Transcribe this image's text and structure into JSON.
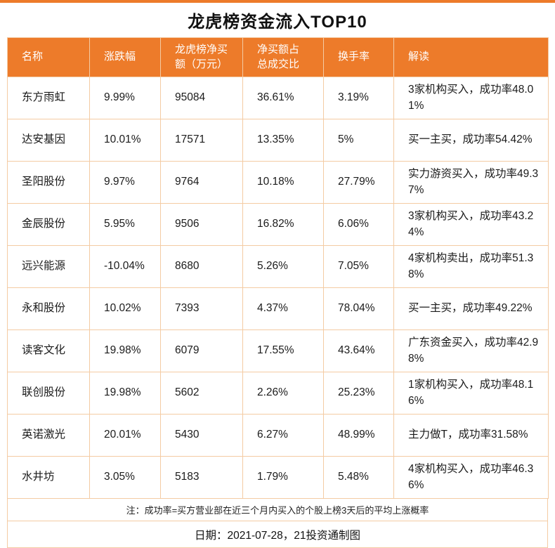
{
  "title": "龙虎榜资金流入TOP10",
  "colors": {
    "accent": "#ED7B2A",
    "border": "#F4CBA3",
    "header_text": "#FFFFFF",
    "body_text": "#1B1B1B"
  },
  "chart_data": {
    "type": "table",
    "title": "龙虎榜资金流入TOP10",
    "columns": [
      "名称",
      "涨跌幅",
      "龙虎榜净买\n额（万元）",
      "净买额占\n总成交比",
      "换手率",
      "解读"
    ],
    "rows": [
      [
        "东方雨虹",
        "9.99%",
        "95084",
        "36.61%",
        "3.19%",
        "3家机构买入，成功率48.01%"
      ],
      [
        "达安基因",
        "10.01%",
        "17571",
        "13.35%",
        "5%",
        "买一主买，成功率54.42%"
      ],
      [
        "圣阳股份",
        "9.97%",
        "9764",
        "10.18%",
        "27.79%",
        "实力游资买入，成功率49.37%"
      ],
      [
        "金辰股份",
        "5.95%",
        "9506",
        "16.82%",
        "6.06%",
        "3家机构买入，成功率43.24%"
      ],
      [
        "远兴能源",
        "-10.04%",
        "8680",
        "5.26%",
        "7.05%",
        "4家机构卖出，成功率51.38%"
      ],
      [
        "永和股份",
        "10.02%",
        "7393",
        "4.37%",
        "78.04%",
        "买一主买，成功率49.22%"
      ],
      [
        "读客文化",
        "19.98%",
        "6079",
        "17.55%",
        "43.64%",
        "广东资金买入，成功率42.98%"
      ],
      [
        "联创股份",
        "19.98%",
        "5602",
        "2.26%",
        "25.23%",
        "1家机构买入，成功率48.16%"
      ],
      [
        "英诺激光",
        "20.01%",
        "5430",
        "6.27%",
        "48.99%",
        "主力做T，成功率31.58%"
      ],
      [
        "水井坊",
        "3.05%",
        "5183",
        "1.79%",
        "5.48%",
        "4家机构买入，成功率46.36%"
      ]
    ]
  },
  "footer": {
    "note": "注：成功率=买方营业部在近三个月内买入的个股上榜3天后的平均上涨概率",
    "date": "日期：2021-07-28，21投资通制图"
  }
}
